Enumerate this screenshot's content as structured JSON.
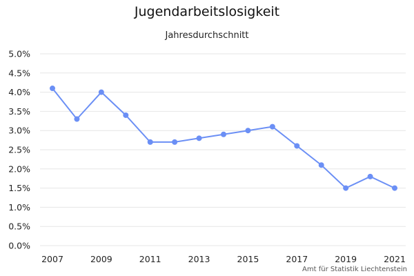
{
  "chart_data": {
    "type": "line",
    "title": "Jugendarbeitslosigkeit",
    "subtitle": "Jahresdurchschnitt",
    "credit": "Amt für Statistik Liechtenstein",
    "x": [
      2007,
      2008,
      2009,
      2010,
      2011,
      2012,
      2013,
      2014,
      2015,
      2016,
      2017,
      2018,
      2019,
      2020,
      2021
    ],
    "series": [
      {
        "values": [
          4.1,
          3.3,
          4.0,
          3.4,
          2.7,
          2.7,
          2.8,
          2.9,
          3.0,
          3.1,
          2.6,
          2.1,
          1.5,
          1.8,
          1.5
        ]
      }
    ],
    "x_tick_labels": [
      "2007",
      "2009",
      "2011",
      "2013",
      "2015",
      "2017",
      "2019",
      "2021"
    ],
    "y_tick_labels": [
      "0.0%",
      "0.5%",
      "1.0%",
      "1.5%",
      "2.0%",
      "2.5%",
      "3.0%",
      "3.5%",
      "4.0%",
      "4.5%",
      "5.0%"
    ],
    "xlim": [
      2007,
      2021
    ],
    "ylim": [
      0,
      5
    ],
    "grid": true,
    "line_color": "#6b8ff5",
    "grid_color": "#e6e6e6"
  }
}
